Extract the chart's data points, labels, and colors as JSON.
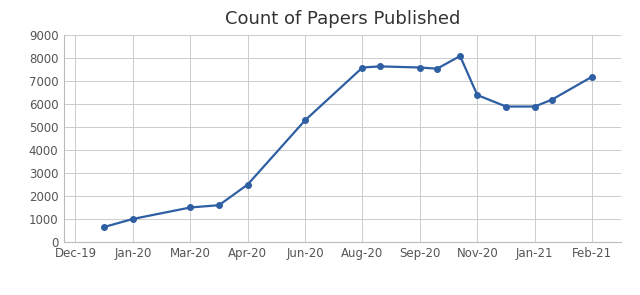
{
  "title": "Count of Papers Published",
  "x_tick_labels": [
    "Dec-19",
    "Jan-20",
    "Mar-20",
    "Apr-20",
    "Jun-20",
    "Aug-20",
    "Sep-20",
    "Nov-20",
    "Jan-21",
    "Feb-21"
  ],
  "x_values": [
    0,
    1,
    2,
    3,
    4,
    5,
    6,
    7,
    8,
    9
  ],
  "data_x": [
    0.5,
    1,
    2,
    2.5,
    3,
    4,
    5,
    5.3,
    6,
    6.3,
    6.7,
    7,
    7.5,
    8,
    8.3,
    9
  ],
  "data_y": [
    650,
    1000,
    1500,
    1600,
    2500,
    5300,
    7600,
    7650,
    7600,
    7550,
    8100,
    6400,
    5900,
    5900,
    6200,
    7200
  ],
  "line_color": "#2E5FA3",
  "marker": "o",
  "marker_size": 4,
  "ylim": [
    0,
    9000
  ],
  "yticks": [
    0,
    1000,
    2000,
    3000,
    4000,
    5000,
    6000,
    7000,
    8000,
    9000
  ],
  "xlim": [
    -0.2,
    9.5
  ],
  "tick_label_fontsize": 8.5,
  "title_fontsize": 13,
  "background_color": "#ffffff",
  "grid_color": "#cccccc",
  "axis_label_color": "#555555",
  "spine_color": "#bbbbbb"
}
